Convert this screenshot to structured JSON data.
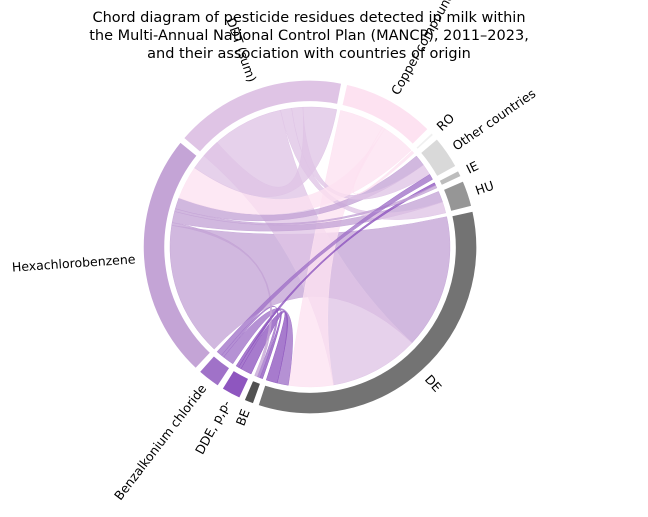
{
  "chart_data": {
    "type": "chord",
    "title_lines": [
      "Chord diagram of pesticide residues detected in milk within",
      "the Multi-Annual National Control Plan (MANCP), 2011–2023,",
      "and their association with countries of origin"
    ],
    "segments": [
      {
        "key": "de",
        "label": "DE",
        "kind": "country",
        "value": 52,
        "color": "#737373"
      },
      {
        "key": "be",
        "label": "BE",
        "kind": "country",
        "value": 1.5,
        "color": "#525252"
      },
      {
        "key": "dde",
        "label": "DDE, p,p-",
        "kind": "pesticide",
        "value": 3,
        "color": "#8e56bf"
      },
      {
        "key": "bac",
        "label": "Benzalkonium chloride",
        "kind": "pesticide",
        "value": 3.5,
        "color": "#a072c8"
      },
      {
        "key": "hcb",
        "label": "Hexachlorobenzene",
        "kind": "pesticide",
        "value": 37,
        "color": "#c4a4d6"
      },
      {
        "key": "ddt",
        "label": "DDT (sum)",
        "kind": "pesticide",
        "value": 26,
        "color": "#dfc4e5"
      },
      {
        "key": "cu",
        "label": "Copper compounds",
        "kind": "pesticide",
        "value": 14,
        "color": "#fde2f1"
      },
      {
        "key": "ro",
        "label": "RO",
        "kind": "country",
        "value": 0.5,
        "color": "#f0f0f0"
      },
      {
        "key": "oth",
        "label": "Other countries",
        "kind": "country",
        "value": 5,
        "color": "#d9d9d9"
      },
      {
        "key": "ie",
        "label": "IE",
        "kind": "country",
        "value": 1,
        "color": "#bdbdbd"
      },
      {
        "key": "hu",
        "label": "HU",
        "kind": "country",
        "value": 4,
        "color": "#969696"
      }
    ],
    "links": [
      {
        "source": "de",
        "target": "hcb",
        "value": 24,
        "color": "#c4a4d6"
      },
      {
        "source": "de",
        "target": "ddt",
        "value": 16,
        "color": "#dfc4e5"
      },
      {
        "source": "de",
        "target": "cu",
        "value": 8,
        "color": "#fde2f1"
      },
      {
        "source": "de",
        "target": "bac",
        "value": 2,
        "color": "#a072c8"
      },
      {
        "source": "de",
        "target": "dde",
        "value": 2,
        "color": "#8e56bf"
      },
      {
        "source": "be",
        "target": "dde",
        "value": 0.5,
        "color": "#8e56bf"
      },
      {
        "source": "be",
        "target": "bac",
        "value": 0.5,
        "color": "#a072c8"
      },
      {
        "source": "be",
        "target": "hcb",
        "value": 0.5,
        "color": "#c4a4d6"
      },
      {
        "source": "hu",
        "target": "hcb",
        "value": 2,
        "color": "#c4a4d6"
      },
      {
        "source": "hu",
        "target": "ddt",
        "value": 2,
        "color": "#dfc4e5"
      },
      {
        "source": "ie",
        "target": "dde",
        "value": 0.5,
        "color": "#8e56bf"
      },
      {
        "source": "ie",
        "target": "hcb",
        "value": 0.5,
        "color": "#c4a4d6"
      },
      {
        "source": "oth",
        "target": "hcb",
        "value": 2,
        "color": "#c4a4d6"
      },
      {
        "source": "oth",
        "target": "ddt",
        "value": 2,
        "color": "#dfc4e5"
      },
      {
        "source": "oth",
        "target": "bac",
        "value": 1,
        "color": "#a072c8"
      },
      {
        "source": "ro",
        "target": "cu",
        "value": 0.5,
        "color": "#fde2f1"
      },
      {
        "source": "cu",
        "target": "hcb",
        "value": 6,
        "color": "#fde2f1"
      },
      {
        "source": "ddt",
        "target": "hcb",
        "value": 6,
        "color": "#dfc4e5"
      }
    ]
  }
}
